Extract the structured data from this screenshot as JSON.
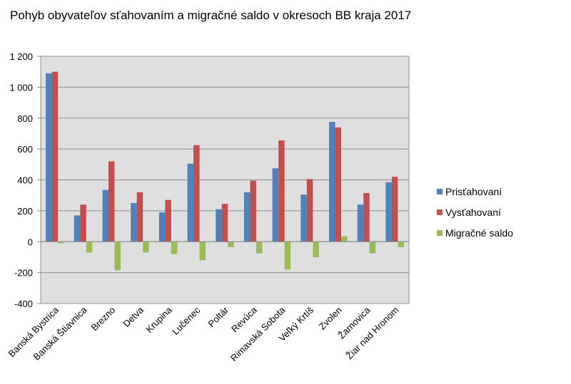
{
  "chart_data": {
    "type": "bar",
    "title": "Pohyb obyvateľov sťahovaním a migračné saldo v okresoch BB kraja 2017",
    "xlabel": "",
    "ylabel": "",
    "ylim": [
      -400,
      1200
    ],
    "yticks": [
      -400,
      -200,
      0,
      200,
      400,
      600,
      800,
      1000,
      1200
    ],
    "ytick_labels": [
      "-400",
      "-200",
      "0",
      "200",
      "400",
      "600",
      "800",
      "1 000",
      "1 200"
    ],
    "grid": true,
    "legend_position": "right",
    "categories": [
      "Banská Bystrica",
      "Banská Štiavnica",
      "Brezno",
      "Detva",
      "Krupina",
      "Lučenec",
      "Poltár",
      "Revúca",
      "Rimavská Sobota",
      "Veľký Krtíš",
      "Zvolen",
      "Žarnovica",
      "Žiar nad Hronom"
    ],
    "series": [
      {
        "name": "Prisťahovaní",
        "color": "#4f81bd",
        "values": [
          1090,
          170,
          335,
          250,
          190,
          505,
          210,
          320,
          475,
          305,
          775,
          240,
          385
        ]
      },
      {
        "name": "Vysťahovaní",
        "color": "#c0504d",
        "values": [
          1100,
          240,
          520,
          320,
          270,
          625,
          245,
          395,
          655,
          405,
          740,
          315,
          420
        ]
      },
      {
        "name": "Migračné saldo",
        "color": "#9bbb59",
        "values": [
          -10,
          -70,
          -185,
          -70,
          -80,
          -120,
          -35,
          -75,
          -180,
          -100,
          35,
          -75,
          -35
        ]
      }
    ]
  }
}
